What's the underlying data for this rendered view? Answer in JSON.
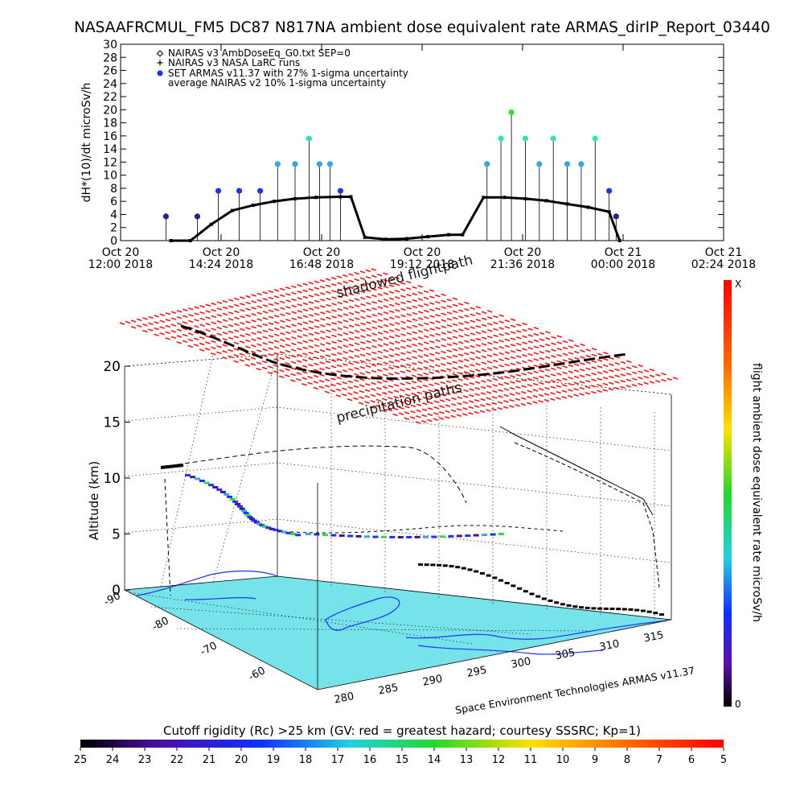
{
  "title": "NASAAFRCMUL_FM5 DC87 N817NA ambient dose equivalent rate ARMAS_dirIP_Report_03440",
  "top_chart": {
    "ylabel": "dH*(10)/dt microSv/h",
    "legend": [
      {
        "marker": "diamond",
        "text": "NAIRAS v3 AmbDoseEq_G0.txt SEP=0"
      },
      {
        "marker": "plus",
        "text": "NAIRAS v3 NASA LaRC runs"
      },
      {
        "marker": "dot",
        "text": "SET ARMAS v11.37 with 27% 1-sigma uncertainty"
      },
      {
        "marker": "none",
        "text": "average NAIRAS v2 10% 1-sigma uncertainty"
      }
    ],
    "x_ticks": [
      {
        "l1": "Oct 20",
        "l2": "12:00 2018"
      },
      {
        "l1": "Oct 20",
        "l2": "14:24 2018"
      },
      {
        "l1": "Oct 20",
        "l2": "16:48 2018"
      },
      {
        "l1": "Oct 20",
        "l2": "19:12 2018"
      },
      {
        "l1": "Oct 20",
        "l2": "21:36 2018"
      },
      {
        "l1": "Oct 21",
        "l2": "00:00 2018"
      },
      {
        "l1": "Oct 21",
        "l2": "02:24 2018"
      }
    ]
  },
  "chart_data": [
    {
      "type": "scatter",
      "title": "NASAAFRCMUL_FM5 DC87 N817NA ambient dose equivalent rate ARMAS_dirIP_Report_03440",
      "xlabel": "",
      "ylabel": "dH*(10)/dt microSv/h",
      "xlim": [
        "Oct 20 12:00 2018",
        "Oct 21 02:24 2018"
      ],
      "ylim": [
        0,
        30
      ],
      "yticks": [
        0,
        2,
        4,
        6,
        8,
        10,
        12,
        14,
        16,
        18,
        20,
        22,
        24,
        26,
        28,
        30
      ],
      "series": [
        {
          "name": "NAIRAS v3 AmbDoseEq_G0.txt SEP=0",
          "x": [
            "13:12",
            "13:40",
            "14:10",
            "14:40",
            "15:10",
            "15:40",
            "16:10",
            "16:40",
            "17:15",
            "17:30",
            "17:50",
            "18:20",
            "18:50",
            "19:20",
            "19:50",
            "20:10",
            "20:40",
            "21:10",
            "21:40",
            "22:10",
            "22:40",
            "23:10",
            "23:40",
            "23:55"
          ],
          "y": [
            0,
            0,
            2.5,
            4.6,
            5.4,
            6.0,
            6.4,
            6.6,
            6.7,
            6.7,
            0.5,
            0.2,
            0.3,
            0.6,
            0.9,
            0.9,
            6.6,
            6.6,
            6.4,
            6.1,
            5.6,
            5.1,
            4.4,
            0
          ]
        },
        {
          "name": "SET ARMAS v11.37 with 27% 1-sigma uncertainty",
          "x": [
            "13:05",
            "13:50",
            "14:20",
            "14:50",
            "15:20",
            "15:45",
            "16:10",
            "16:30",
            "16:45",
            "17:00",
            "17:15",
            "20:45",
            "21:05",
            "21:20",
            "21:40",
            "22:00",
            "22:20",
            "22:40",
            "23:00",
            "23:20",
            "23:40",
            "23:50"
          ],
          "y": [
            3.7,
            3.7,
            7.6,
            7.6,
            7.6,
            11.7,
            11.7,
            15.6,
            11.7,
            11.7,
            7.6,
            11.7,
            15.6,
            19.6,
            15.6,
            11.7,
            15.6,
            11.7,
            11.7,
            15.6,
            7.6,
            3.7
          ]
        }
      ]
    },
    {
      "type": "scatter",
      "title": "Space Environment Technologies ARMAS v11.37",
      "xlabel": "",
      "ylabel": "Altitude (km)",
      "zlim": [
        0,
        20
      ],
      "zticks": [
        0,
        5,
        10,
        15,
        20
      ],
      "lon_ticks": [
        "280",
        "285",
        "290",
        "295",
        "300",
        "305",
        "310",
        "315"
      ],
      "lat_ticks": [
        "-90",
        "-80",
        "-70",
        "-60"
      ],
      "annotations": [
        "shadowed flightpath",
        "precipitation paths"
      ],
      "colorbar": {
        "label": "flight ambient dose equivalent rate microSv/h",
        "top": "X",
        "bottom": "0"
      }
    }
  ],
  "cutoff_bar": {
    "title": "Cutoff rigidity (Rc) >25 km (GV: red = greatest hazard; courtesy SSSRC; Kp=1)",
    "labels": [
      "25",
      "24",
      "23",
      "22",
      "21",
      "20",
      "19",
      "18",
      "17",
      "16",
      "15",
      "14",
      "13",
      "12",
      "11",
      "10",
      "9",
      "8",
      "7",
      "6",
      "5"
    ]
  },
  "credit": "Space Environment Technologies ARMAS v11.37",
  "colors": {
    "armas_low": "#3a1b86",
    "armas_mid": "#1b33ff",
    "armas_high": "#36a6e4",
    "armas_top": "#36e0b8",
    "armas_peak": "#30e030",
    "grid": "#000000",
    "flightpath": "#ff0000",
    "surface": "#6fe0e8"
  }
}
